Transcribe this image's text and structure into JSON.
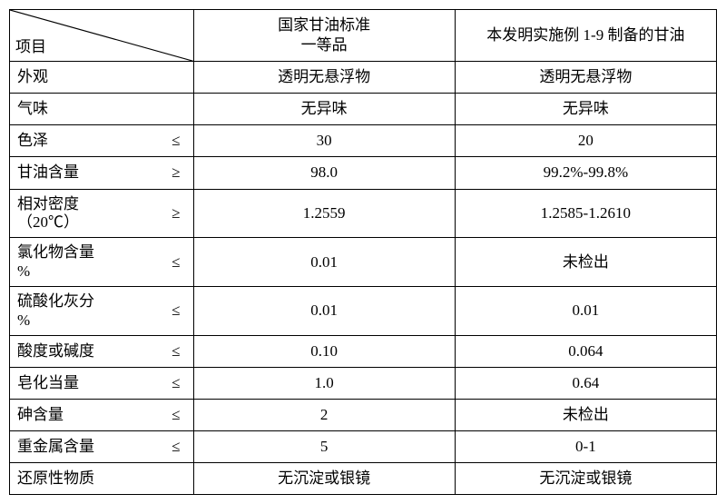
{
  "header": {
    "paramLabel": "项目",
    "col2line1": "国家甘油标准",
    "col2line2": "一等品",
    "col3": "本发明实施例 1-9 制备的甘油"
  },
  "rows": [
    {
      "name": "外观",
      "op": "",
      "v2": "透明无悬浮物",
      "v3": "透明无悬浮物"
    },
    {
      "name": "气味",
      "op": "",
      "v2": "无异味",
      "v3": "无异味"
    },
    {
      "name": "色泽",
      "op": "≤",
      "v2": "30",
      "v3": "20"
    },
    {
      "name": "甘油含量",
      "op": "≥",
      "v2": "98.0",
      "v3": "99.2%-99.8%"
    },
    {
      "name": "相对密度\n（20℃）",
      "op": "≥",
      "v2": "1.2559",
      "v3": "1.2585-1.2610"
    },
    {
      "name": "氯化物含量\n%",
      "op": "≤",
      "v2": "0.01",
      "v3": "未检出"
    },
    {
      "name": "硫酸化灰分\n%",
      "op": "≤",
      "v2": "0.01",
      "v3": "0.01"
    },
    {
      "name": "酸度或碱度",
      "op": "≤",
      "v2": "0.10",
      "v3": "0.064"
    },
    {
      "name": "皂化当量",
      "op": "≤",
      "v2": "1.0",
      "v3": "0.64"
    },
    {
      "name": "砷含量",
      "op": "≤",
      "v2": "2",
      "v3": "未检出"
    },
    {
      "name": "重金属含量",
      "op": "≤",
      "v2": "5",
      "v3": "0-1"
    },
    {
      "name": "还原性物质",
      "op": "",
      "v2": "无沉淀或银镜",
      "v3": "无沉淀或银镜"
    }
  ]
}
